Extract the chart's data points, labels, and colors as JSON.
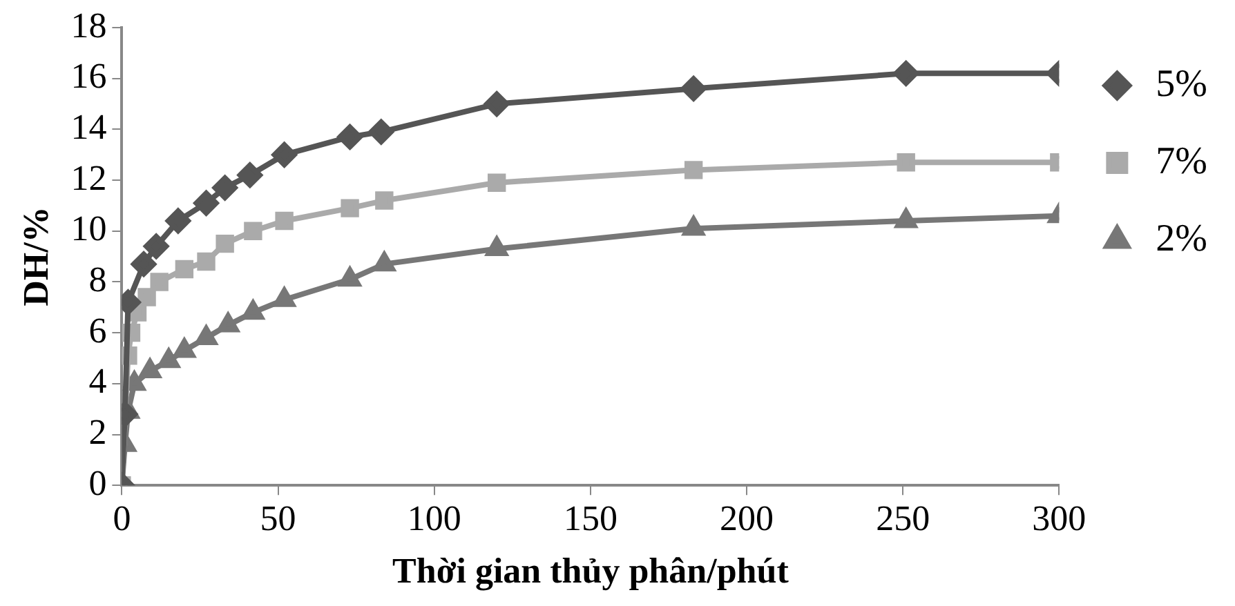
{
  "chart_data": {
    "type": "line",
    "xlabel": "Thời gian thủy phân/phút",
    "ylabel": "DH/%",
    "xlim": [
      0,
      300
    ],
    "xticks": [
      0,
      50,
      100,
      150,
      200,
      250,
      300
    ],
    "ylim": [
      0,
      18
    ],
    "yticks": [
      0,
      2,
      4,
      6,
      8,
      10,
      12,
      14,
      16,
      18
    ],
    "grid": false,
    "legend": "right",
    "line_style": "solid",
    "series": [
      {
        "name": "5%",
        "color": "#555555",
        "marker": "diamond",
        "x": [
          0,
          1,
          2,
          7,
          11,
          18,
          27,
          33,
          41,
          52,
          73,
          83,
          120,
          183,
          251,
          300
        ],
        "values": [
          0,
          2.8,
          7.2,
          8.7,
          9.4,
          10.4,
          11.1,
          11.7,
          12.2,
          13.0,
          13.7,
          13.9,
          15.0,
          15.6,
          16.2,
          16.2
        ]
      },
      {
        "name": "7%",
        "color": "#aaaaaa",
        "marker": "square",
        "x": [
          0,
          2,
          3,
          5,
          8,
          12,
          20,
          27,
          33,
          42,
          52,
          73,
          84,
          120,
          183,
          251,
          300
        ],
        "values": [
          0,
          5.1,
          6.0,
          6.8,
          7.4,
          8.0,
          8.5,
          8.8,
          9.5,
          10.0,
          10.4,
          10.9,
          11.2,
          11.9,
          12.4,
          12.7,
          12.7
        ]
      },
      {
        "name": "2%",
        "color": "#777777",
        "marker": "triangle",
        "x": [
          0,
          1,
          2,
          4,
          9,
          15,
          20,
          27,
          34,
          42,
          52,
          73,
          84,
          120,
          183,
          251,
          300
        ],
        "values": [
          0,
          1.6,
          2.9,
          4.0,
          4.5,
          4.9,
          5.3,
          5.8,
          6.3,
          6.8,
          7.3,
          8.1,
          8.7,
          9.3,
          10.1,
          10.4,
          10.6
        ]
      }
    ]
  }
}
